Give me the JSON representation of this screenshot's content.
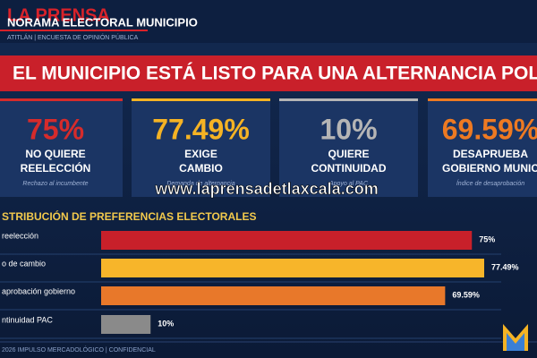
{
  "header": {
    "logo": "LA PRENSA",
    "title": "NORAMA ELECTORAL MUNICIPIO",
    "subtitle": "ATITLÁN | ENCUESTA DE OPINIÓN PÚBLICA"
  },
  "banner": "EL MUNICIPIO ESTÁ LISTO PARA UNA ALTERNANCIA POLÍTICA",
  "cards": [
    {
      "value": "75%",
      "line1": "NO QUIERE",
      "line2": "REELECCIÓN",
      "note": "Rechazo al incumbente",
      "color": "#d62b2b"
    },
    {
      "value": "77.49%",
      "line1": "EXIGE",
      "line2": "CAMBIO",
      "note": "Demanda de alternancia",
      "color": "#f5b324"
    },
    {
      "value": "10%",
      "line1": "QUIERE",
      "line2": "CONTINUIDAD",
      "note": "Apoyo al PAC",
      "color": "#b5b5b5"
    },
    {
      "value": "69.59%",
      "line1": "DESAPRUEBA",
      "line2": "GOBIERNO MUNIC",
      "note": "Índice de desaprobación",
      "color": "#ee7a22"
    }
  ],
  "watermark": "www.laprensadetlaxcala.com",
  "chart_data": {
    "type": "bar",
    "title": "STRIBUCIÓN DE PREFERENCIAS ELECTORALES",
    "categories": [
      "reelección",
      "o de cambio",
      "aprobación gobierno",
      "ntinuidad PAC"
    ],
    "values": [
      75,
      77.49,
      69.59,
      10
    ],
    "value_labels": [
      "75%",
      "77.49%",
      "69.59%",
      "10%"
    ],
    "colors": [
      "#c8202a",
      "#f7b52a",
      "#e8782a",
      "#8a8a8a"
    ]
  },
  "footer": "2026 IMPULSO MERCADOLÓGICO | CONFIDENCIAL"
}
